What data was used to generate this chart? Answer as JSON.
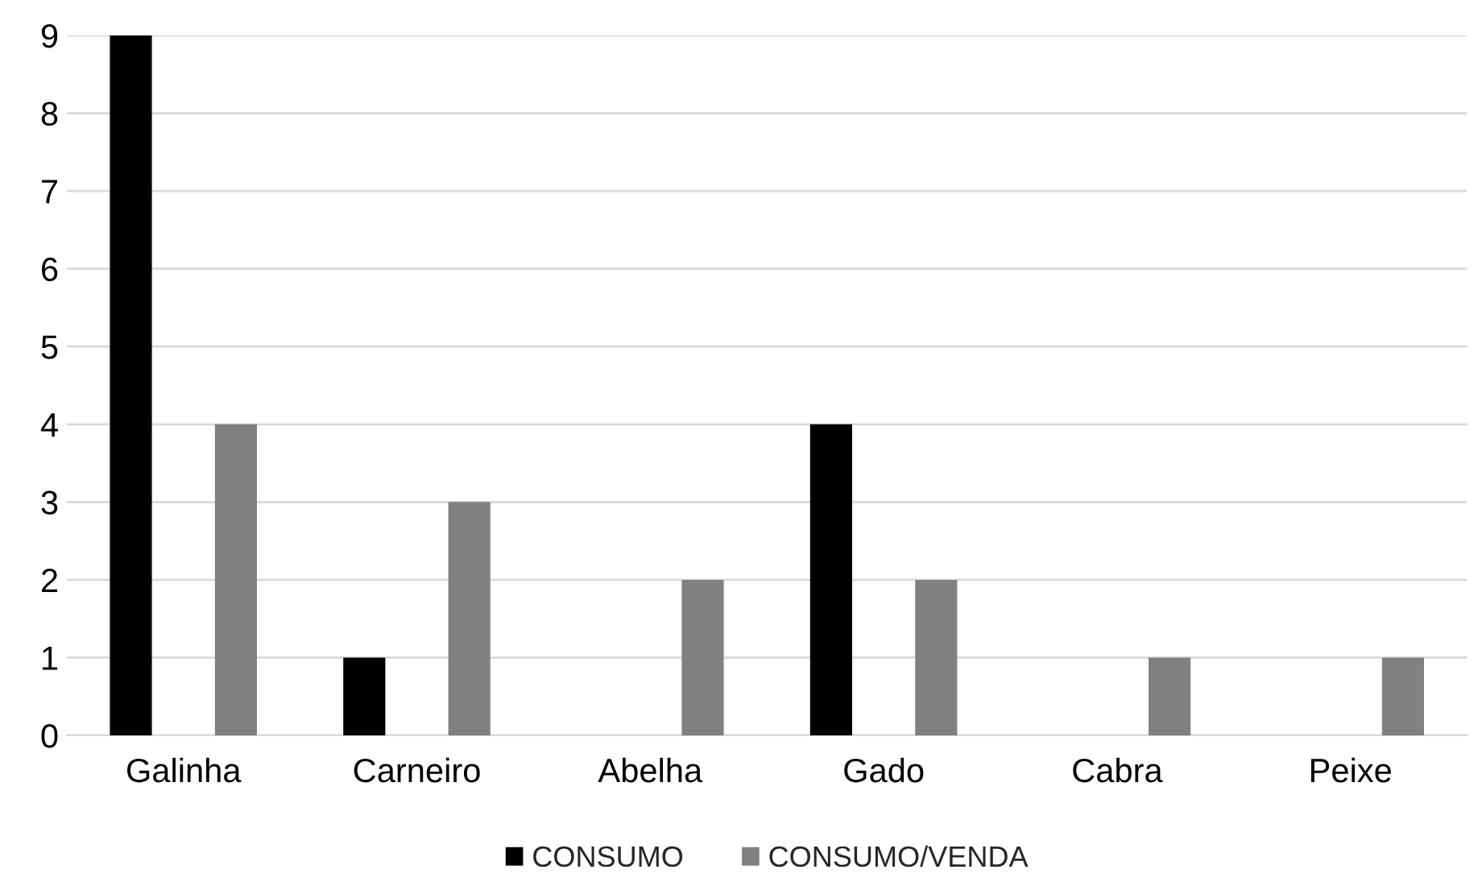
{
  "chart_data": {
    "type": "bar",
    "categories": [
      "Galinha",
      "Carneiro",
      "Abelha",
      "Gado",
      "Cabra",
      "Peixe"
    ],
    "series": [
      {
        "name": "CONSUMO",
        "color": "#000000",
        "values": [
          9,
          1,
          0,
          4,
          0,
          0
        ]
      },
      {
        "name": "CONSUMO/VENDA",
        "color": "#808080",
        "values": [
          4,
          3,
          2,
          2,
          1,
          1
        ]
      }
    ],
    "ylim": [
      0,
      9
    ],
    "yticks": [
      0,
      1,
      2,
      3,
      4,
      5,
      6,
      7,
      8,
      9
    ],
    "grid": "y",
    "legend": "bottom"
  }
}
